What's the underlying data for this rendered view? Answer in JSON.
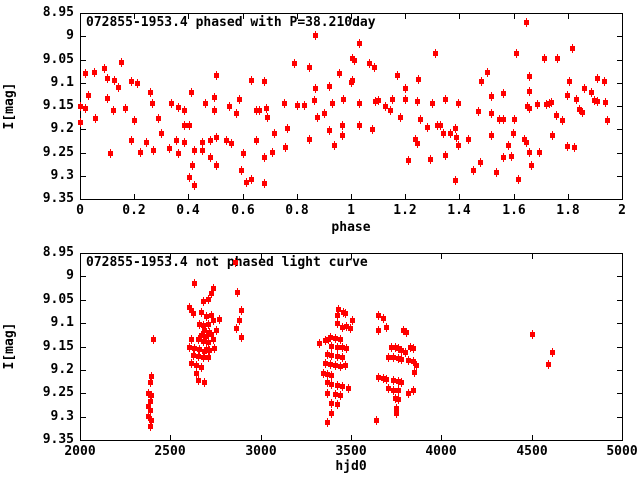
{
  "chart_data": [
    {
      "type": "scatter",
      "title": "072855-1953.4 phased with P=38.210day",
      "xlabel": "phase",
      "ylabel": "I[mag]",
      "xlim": [
        0,
        2
      ],
      "ylim": [
        8.95,
        9.35
      ],
      "y_axis_inverted": true,
      "grid": false,
      "legend": "none",
      "marker": "filled-square-errorbar",
      "marker_color": "#ff0000",
      "axis_color": "#000000",
      "bg_color": "#ffffff",
      "xtick_values": [
        0,
        0.2,
        0.4,
        0.6,
        0.8,
        1,
        1.2,
        1.4,
        1.6,
        1.8,
        2
      ],
      "xticks": [
        "0",
        "0.2",
        "0.4",
        "0.6",
        "0.8",
        "1",
        "1.2",
        "1.4",
        "1.6",
        "1.8",
        "2"
      ],
      "ytick_values": [
        8.95,
        9,
        9.05,
        9.1,
        9.15,
        9.2,
        9.25,
        9.3,
        9.35
      ],
      "yticks": [
        "8.95",
        "9",
        "9.05",
        "9.1",
        "9.15",
        "9.2",
        "9.25",
        "9.3",
        "9.35"
      ],
      "points": [
        [
          0.0,
          9.15
        ],
        [
          0.0,
          9.184
        ],
        [
          0.018,
          9.079
        ],
        [
          0.02,
          9.154
        ],
        [
          0.03,
          9.126
        ],
        [
          0.05,
          9.077
        ],
        [
          0.055,
          9.176
        ],
        [
          0.09,
          9.068
        ],
        [
          0.1,
          9.09
        ],
        [
          0.1,
          9.133
        ],
        [
          0.11,
          9.251
        ],
        [
          0.12,
          9.159
        ],
        [
          0.125,
          9.094
        ],
        [
          0.14,
          9.11
        ],
        [
          0.15,
          9.055
        ],
        [
          0.165,
          9.154
        ],
        [
          0.19,
          9.096
        ],
        [
          0.19,
          9.223
        ],
        [
          0.2,
          9.18
        ],
        [
          0.21,
          9.1
        ],
        [
          0.22,
          9.249
        ],
        [
          0.245,
          9.227
        ],
        [
          0.257,
          9.12
        ],
        [
          0.264,
          9.144
        ],
        [
          0.268,
          9.245
        ],
        [
          0.287,
          9.176
        ],
        [
          0.3,
          9.208
        ],
        [
          0.33,
          9.24
        ],
        [
          0.337,
          9.144
        ],
        [
          0.355,
          9.223
        ],
        [
          0.36,
          9.152
        ],
        [
          0.36,
          9.251
        ],
        [
          0.385,
          9.159
        ],
        [
          0.385,
          9.191
        ],
        [
          0.385,
          9.227
        ],
        [
          0.404,
          9.191
        ],
        [
          0.404,
          9.302
        ],
        [
          0.41,
          9.12
        ],
        [
          0.415,
          9.277
        ],
        [
          0.42,
          9.245
        ],
        [
          0.42,
          9.32
        ],
        [
          0.45,
          9.227
        ],
        [
          0.45,
          9.245
        ],
        [
          0.46,
          9.144
        ],
        [
          0.48,
          9.223
        ],
        [
          0.48,
          9.259
        ],
        [
          0.495,
          9.13
        ],
        [
          0.495,
          9.159
        ],
        [
          0.502,
          9.083
        ],
        [
          0.502,
          9.216
        ],
        [
          0.502,
          9.277
        ],
        [
          0.538,
          9.223
        ],
        [
          0.55,
          9.151
        ],
        [
          0.557,
          9.23
        ],
        [
          0.575,
          9.166
        ],
        [
          0.587,
          9.134
        ],
        [
          0.593,
          9.288
        ],
        [
          0.6,
          9.252
        ],
        [
          0.612,
          9.313
        ],
        [
          0.63,
          9.094
        ],
        [
          0.63,
          9.306
        ],
        [
          0.648,
          9.159
        ],
        [
          0.648,
          9.223
        ],
        [
          0.66,
          9.159
        ],
        [
          0.679,
          9.096
        ],
        [
          0.679,
          9.259
        ],
        [
          0.679,
          9.316
        ],
        [
          0.685,
          9.155
        ],
        [
          0.691,
          9.173
        ],
        [
          0.71,
          9.248
        ],
        [
          0.716,
          9.209
        ],
        [
          0.752,
          9.144
        ],
        [
          0.758,
          9.238
        ],
        [
          0.764,
          9.198
        ],
        [
          0.789,
          9.058
        ],
        [
          0.801,
          9.148
        ],
        [
          0.826,
          9.148
        ],
        [
          0.844,
          9.067
        ],
        [
          0.844,
          9.22
        ],
        [
          0.862,
          9.137
        ],
        [
          0.869,
          8.997
        ],
        [
          0.869,
          9.112
        ],
        [
          0.875,
          9.173
        ],
        [
          0.899,
          9.166
        ],
        [
          0.917,
          9.108
        ],
        [
          0.917,
          9.202
        ],
        [
          0.93,
          9.144
        ],
        [
          0.936,
          9.234
        ],
        [
          0.954,
          9.08
        ],
        [
          0.966,
          9.191
        ],
        [
          0.966,
          9.212
        ],
        [
          0.972,
          9.134
        ],
        [
          1.0,
          9.098
        ],
        [
          1.003,
          9.047
        ],
        [
          1.003,
          9.094
        ],
        [
          1.01,
          9.05
        ],
        [
          1.029,
          9.015
        ],
        [
          1.029,
          9.143
        ],
        [
          1.029,
          9.191
        ],
        [
          1.066,
          9.058
        ],
        [
          1.078,
          9.2
        ],
        [
          1.084,
          9.067
        ],
        [
          1.09,
          9.139
        ],
        [
          1.1,
          9.137
        ],
        [
          1.127,
          9.151
        ],
        [
          1.145,
          9.159
        ],
        [
          1.151,
          9.136
        ],
        [
          1.17,
          9.083
        ],
        [
          1.182,
          9.173
        ],
        [
          1.2,
          9.112
        ],
        [
          1.2,
          9.134
        ],
        [
          1.212,
          9.266
        ],
        [
          1.237,
          9.22
        ],
        [
          1.243,
          9.139
        ],
        [
          1.243,
          9.23
        ],
        [
          1.249,
          9.092
        ],
        [
          1.255,
          9.179
        ],
        [
          1.28,
          9.195
        ],
        [
          1.292,
          9.265
        ],
        [
          1.298,
          9.144
        ],
        [
          1.31,
          9.035
        ],
        [
          1.316,
          9.191
        ],
        [
          1.328,
          9.191
        ],
        [
          1.341,
          9.209
        ],
        [
          1.347,
          9.134
        ],
        [
          1.347,
          9.255
        ],
        [
          1.365,
          9.207
        ],
        [
          1.383,
          9.198
        ],
        [
          1.383,
          9.309
        ],
        [
          1.389,
          9.216
        ],
        [
          1.396,
          9.144
        ],
        [
          1.396,
          9.234
        ],
        [
          1.432,
          9.222
        ],
        [
          1.451,
          9.288
        ],
        [
          1.469,
          9.16
        ],
        [
          1.475,
          9.27
        ],
        [
          1.481,
          9.096
        ],
        [
          1.5,
          9.076
        ],
        [
          1.517,
          9.129
        ],
        [
          1.517,
          9.166
        ],
        [
          1.517,
          9.212
        ],
        [
          1.535,
          9.293
        ],
        [
          1.547,
          9.177
        ],
        [
          1.56,
          9.121
        ],
        [
          1.56,
          9.178
        ],
        [
          1.56,
          9.259
        ],
        [
          1.578,
          9.234
        ],
        [
          1.59,
          9.257
        ],
        [
          1.596,
          9.207
        ],
        [
          1.603,
          9.177
        ],
        [
          1.609,
          9.035
        ],
        [
          1.615,
          9.306
        ],
        [
          1.639,
          9.22
        ],
        [
          1.645,
          8.969
        ],
        [
          1.645,
          9.227
        ],
        [
          1.651,
          9.151
        ],
        [
          1.657,
          9.085
        ],
        [
          1.657,
          9.117
        ],
        [
          1.657,
          9.155
        ],
        [
          1.657,
          9.248
        ],
        [
          1.664,
          9.277
        ],
        [
          1.688,
          9.146
        ],
        [
          1.694,
          9.248
        ],
        [
          1.712,
          9.047
        ],
        [
          1.718,
          9.146
        ],
        [
          1.73,
          9.144
        ],
        [
          1.737,
          9.142
        ],
        [
          1.743,
          9.212
        ],
        [
          1.755,
          9.169
        ],
        [
          1.761,
          9.047
        ],
        [
          1.78,
          9.18
        ],
        [
          1.798,
          9.126
        ],
        [
          1.798,
          9.236
        ],
        [
          1.804,
          9.096
        ],
        [
          1.817,
          9.026
        ],
        [
          1.823,
          9.239
        ],
        [
          1.829,
          9.136
        ],
        [
          1.841,
          9.157
        ],
        [
          1.853,
          9.162
        ],
        [
          1.859,
          9.112
        ],
        [
          1.884,
          9.119
        ],
        [
          1.896,
          9.137
        ],
        [
          1.908,
          9.09
        ],
        [
          1.908,
          9.139
        ],
        [
          1.933,
          9.096
        ],
        [
          1.939,
          9.142
        ],
        [
          1.945,
          9.18
        ]
      ]
    },
    {
      "type": "scatter",
      "title": "072855-1953.4 not phased light curve",
      "xlabel": "hjd0",
      "ylabel": "I[mag]",
      "xlim": [
        2000,
        5000
      ],
      "ylim": [
        8.95,
        9.35
      ],
      "y_axis_inverted": true,
      "grid": false,
      "legend": "none",
      "marker": "filled-square-errorbar",
      "marker_color": "#ff0000",
      "axis_color": "#000000",
      "bg_color": "#ffffff",
      "xtick_values": [
        2000,
        2500,
        3000,
        3500,
        4000,
        4500,
        5000
      ],
      "xticks": [
        "2000",
        "2500",
        "3000",
        "3500",
        "4000",
        "4500",
        "5000"
      ],
      "ytick_values": [
        8.95,
        9,
        9.05,
        9.1,
        9.15,
        9.2,
        9.25,
        9.3,
        9.35
      ],
      "yticks": [
        "8.95",
        "9",
        "9.05",
        "9.1",
        "9.15",
        "9.2",
        "9.25",
        "9.3",
        "9.35"
      ],
      "points": [
        [
          2376,
          9.25
        ],
        [
          2376,
          9.277
        ],
        [
          2376,
          9.298
        ],
        [
          2385,
          9.225
        ],
        [
          2385,
          9.266
        ],
        [
          2385,
          9.286
        ],
        [
          2385,
          9.32
        ],
        [
          2395,
          9.213
        ],
        [
          2395,
          9.254
        ],
        [
          2395,
          9.307
        ],
        [
          2402,
          9.133
        ],
        [
          2606,
          9.066
        ],
        [
          2606,
          9.15
        ],
        [
          2615,
          9.072
        ],
        [
          2615,
          9.135
        ],
        [
          2615,
          9.186
        ],
        [
          2624,
          9.079
        ],
        [
          2624,
          9.168
        ],
        [
          2633,
          9.015
        ],
        [
          2633,
          9.154
        ],
        [
          2642,
          9.19
        ],
        [
          2642,
          9.206
        ],
        [
          2651,
          9.135
        ],
        [
          2651,
          9.17
        ],
        [
          2651,
          9.222
        ],
        [
          2661,
          9.102
        ],
        [
          2661,
          9.156
        ],
        [
          2670,
          9.076
        ],
        [
          2670,
          9.125
        ],
        [
          2670,
          9.193
        ],
        [
          2679,
          9.052
        ],
        [
          2679,
          9.104
        ],
        [
          2679,
          9.138
        ],
        [
          2679,
          9.173
        ],
        [
          2688,
          9.115
        ],
        [
          2688,
          9.159
        ],
        [
          2688,
          9.225
        ],
        [
          2697,
          9.084
        ],
        [
          2697,
          9.128
        ],
        [
          2697,
          9.156
        ],
        [
          2706,
          9.049
        ],
        [
          2706,
          9.102
        ],
        [
          2706,
          9.14
        ],
        [
          2706,
          9.172
        ],
        [
          2716,
          9.118
        ],
        [
          2716,
          9.157
        ],
        [
          2725,
          9.035
        ],
        [
          2725,
          9.083
        ],
        [
          2725,
          9.123
        ],
        [
          2734,
          9.024
        ],
        [
          2734,
          9.093
        ],
        [
          2734,
          9.135
        ],
        [
          2743,
          9.154
        ],
        [
          2753,
          9.115
        ],
        [
          2771,
          9.092
        ],
        [
          2860,
          8.97
        ],
        [
          2863,
          9.111
        ],
        [
          2871,
          9.033
        ],
        [
          2881,
          9.093
        ],
        [
          2890,
          9.072
        ],
        [
          2890,
          9.129
        ],
        [
          3325,
          9.142
        ],
        [
          3347,
          9.206
        ],
        [
          3356,
          9.136
        ],
        [
          3356,
          9.185
        ],
        [
          3365,
          9.165
        ],
        [
          3365,
          9.209
        ],
        [
          3365,
          9.227
        ],
        [
          3365,
          9.249
        ],
        [
          3365,
          9.311
        ],
        [
          3375,
          9.135
        ],
        [
          3383,
          9.13
        ],
        [
          3383,
          9.187
        ],
        [
          3392,
          9.149
        ],
        [
          3392,
          9.168
        ],
        [
          3392,
          9.211
        ],
        [
          3392,
          9.23
        ],
        [
          3392,
          9.27
        ],
        [
          3392,
          9.292
        ],
        [
          3411,
          9.132
        ],
        [
          3411,
          9.19
        ],
        [
          3411,
          9.252
        ],
        [
          3420,
          9.083
        ],
        [
          3420,
          9.099
        ],
        [
          3420,
          9.15
        ],
        [
          3420,
          9.17
        ],
        [
          3420,
          9.232
        ],
        [
          3420,
          9.273
        ],
        [
          3430,
          9.07
        ],
        [
          3438,
          9.135
        ],
        [
          3438,
          9.192
        ],
        [
          3438,
          9.254
        ],
        [
          3448,
          9.108
        ],
        [
          3448,
          9.152
        ],
        [
          3448,
          9.172
        ],
        [
          3448,
          9.235
        ],
        [
          3457,
          9.076
        ],
        [
          3466,
          9.078
        ],
        [
          3466,
          9.19
        ],
        [
          3475,
          9.106
        ],
        [
          3475,
          9.154
        ],
        [
          3484,
          9.239
        ],
        [
          3494,
          9.111
        ],
        [
          3503,
          9.093
        ],
        [
          3640,
          9.307
        ],
        [
          3650,
          9.083
        ],
        [
          3650,
          9.115
        ],
        [
          3650,
          9.215
        ],
        [
          3677,
          9.09
        ],
        [
          3677,
          9.218
        ],
        [
          3696,
          9.108
        ],
        [
          3696,
          9.22
        ],
        [
          3705,
          9.172
        ],
        [
          3705,
          9.239
        ],
        [
          3723,
          9.15
        ],
        [
          3732,
          9.173
        ],
        [
          3732,
          9.222
        ],
        [
          3732,
          9.242
        ],
        [
          3742,
          9.152
        ],
        [
          3742,
          9.261
        ],
        [
          3751,
          9.282
        ],
        [
          3751,
          9.293
        ],
        [
          3760,
          9.154
        ],
        [
          3760,
          9.175
        ],
        [
          3760,
          9.223
        ],
        [
          3760,
          9.243
        ],
        [
          3760,
          9.263
        ],
        [
          3778,
          9.157
        ],
        [
          3778,
          9.177
        ],
        [
          3778,
          9.225
        ],
        [
          3787,
          9.115
        ],
        [
          3797,
          9.161
        ],
        [
          3806,
          9.118
        ],
        [
          3815,
          9.179
        ],
        [
          3815,
          9.25
        ],
        [
          3824,
          9.15
        ],
        [
          3842,
          9.154
        ],
        [
          3842,
          9.18
        ],
        [
          3842,
          9.243
        ],
        [
          3851,
          9.204
        ],
        [
          3860,
          9.19
        ],
        [
          4501,
          9.123
        ],
        [
          4591,
          9.188
        ],
        [
          4611,
          9.161
        ]
      ]
    }
  ]
}
